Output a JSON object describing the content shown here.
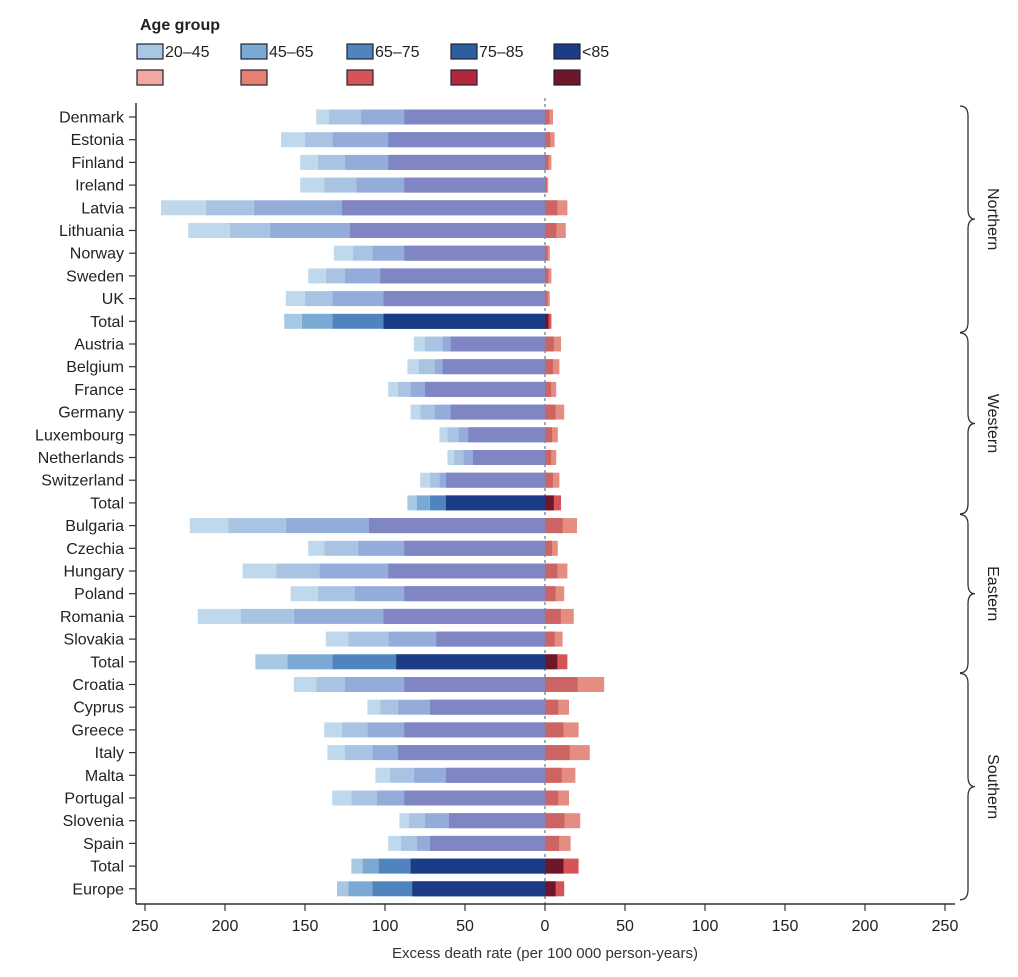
{
  "chart_data": {
    "type": "bar",
    "orientation": "horizontal",
    "stacked": true,
    "legend_title": "Age group",
    "legend_placement": "top-left",
    "xlabel": "Excess death rate (per 100 000 person-years)",
    "xlim": [
      -250,
      250
    ],
    "x_ticks": [
      -250,
      -200,
      -150,
      -100,
      -50,
      0,
      50,
      100,
      150,
      200,
      250
    ],
    "x_tick_labels": [
      "250",
      "200",
      "150",
      "100",
      "50",
      "0",
      "50",
      "100",
      "150",
      "200",
      "250"
    ],
    "reference_line": {
      "x": 0,
      "style": "dashed"
    },
    "age_groups": [
      "20–45",
      "45–65",
      "65–75",
      "75–85",
      "<85"
    ],
    "colors": {
      "blue": [
        "#a7c8e2",
        "#7aaad3",
        "#4f84bf",
        "#2c5f9e",
        "#1b3c86"
      ],
      "red": [
        "#f2aaa0",
        "#e8806f",
        "#d65457",
        "#b2283a",
        "#6f1628"
      ],
      "country_blue": [
        "#c0d8ec",
        "#a9c4e3",
        "#94acd9",
        "#8791ca",
        "#7f86c3"
      ],
      "country_red": [
        "#f6c7bd",
        "#eeaa9c",
        "#e48d80",
        "#d87671",
        "#cc6464"
      ]
    },
    "regions": [
      {
        "name": "Northern",
        "rows": [
          "Denmark",
          "Estonia",
          "Finland",
          "Ireland",
          "Latvia",
          "Lithuania",
          "Norway",
          "Sweden",
          "UK",
          "Total"
        ]
      },
      {
        "name": "Western",
        "rows": [
          "Austria",
          "Belgium",
          "France",
          "Germany",
          "Luxembourg",
          "Netherlands",
          "Switzerland",
          "Total"
        ]
      },
      {
        "name": "Eastern",
        "rows": [
          "Bulgaria",
          "Czechia",
          "Hungary",
          "Poland",
          "Romania",
          "Slovakia",
          "Total"
        ]
      },
      {
        "name": "Southern",
        "rows": [
          "Croatia",
          "Cyprus",
          "Greece",
          "Italy",
          "Malta",
          "Portugal",
          "Slovenia",
          "Spain",
          "Total",
          "Europe"
        ]
      }
    ],
    "rows": [
      {
        "label": "Denmark",
        "total": false,
        "neg": [
          -143,
          -135,
          -115,
          -88
        ],
        "pos": 5
      },
      {
        "label": "Estonia",
        "total": false,
        "neg": [
          -165,
          -150,
          -133,
          -98
        ],
        "pos": 6
      },
      {
        "label": "Finland",
        "total": false,
        "neg": [
          -153,
          -142,
          -125,
          -98
        ],
        "pos": 4
      },
      {
        "label": "Ireland",
        "total": false,
        "neg": [
          -153,
          -138,
          -118,
          -88
        ],
        "pos": 2
      },
      {
        "label": "Latvia",
        "total": false,
        "neg": [
          -240,
          -212,
          -182,
          -127
        ],
        "pos": 14
      },
      {
        "label": "Lithuania",
        "total": false,
        "neg": [
          -223,
          -197,
          -172,
          -122
        ],
        "pos": 13
      },
      {
        "label": "Norway",
        "total": false,
        "neg": [
          -132,
          -120,
          -108,
          -88
        ],
        "pos": 3
      },
      {
        "label": "Sweden",
        "total": false,
        "neg": [
          -148,
          -137,
          -125,
          -103
        ],
        "pos": 4
      },
      {
        "label": "UK",
        "total": false,
        "neg": [
          -162,
          -150,
          -133,
          -101
        ],
        "pos": 3
      },
      {
        "label": "Total",
        "total": true,
        "neg": [
          -163,
          -152,
          -133,
          -101
        ],
        "pos": 4
      },
      {
        "label": "Austria",
        "total": false,
        "neg": [
          -82,
          -75,
          -64,
          -59
        ],
        "pos": 10
      },
      {
        "label": "Belgium",
        "total": false,
        "neg": [
          -86,
          -79,
          -69,
          -64
        ],
        "pos": 9
      },
      {
        "label": "France",
        "total": false,
        "neg": [
          -98,
          -92,
          -84,
          -75
        ],
        "pos": 7
      },
      {
        "label": "Germany",
        "total": false,
        "neg": [
          -84,
          -78,
          -69,
          -59
        ],
        "pos": 12
      },
      {
        "label": "Luxembourg",
        "total": false,
        "neg": [
          -66,
          -61,
          -54,
          -48
        ],
        "pos": 8
      },
      {
        "label": "Netherlands",
        "total": false,
        "neg": [
          -61,
          -57,
          -51,
          -45
        ],
        "pos": 7
      },
      {
        "label": "Switzerland",
        "total": false,
        "neg": [
          -78,
          -72,
          -66,
          -62
        ],
        "pos": 9
      },
      {
        "label": "Total",
        "total": true,
        "neg": [
          -86,
          -80,
          -72,
          -62
        ],
        "pos": 10
      },
      {
        "label": "Bulgaria",
        "total": false,
        "neg": [
          -222,
          -198,
          -162,
          -110
        ],
        "pos": 20
      },
      {
        "label": "Czechia",
        "total": false,
        "neg": [
          -148,
          -138,
          -117,
          -88
        ],
        "pos": 8
      },
      {
        "label": "Hungary",
        "total": false,
        "neg": [
          -189,
          -168,
          -141,
          -98
        ],
        "pos": 14
      },
      {
        "label": "Poland",
        "total": false,
        "neg": [
          -159,
          -142,
          -119,
          -88
        ],
        "pos": 12
      },
      {
        "label": "Romania",
        "total": false,
        "neg": [
          -217,
          -190,
          -157,
          -101
        ],
        "pos": 18
      },
      {
        "label": "Slovakia",
        "total": false,
        "neg": [
          -137,
          -123,
          -98,
          -68
        ],
        "pos": 11
      },
      {
        "label": "Total",
        "total": true,
        "neg": [
          -181,
          -161,
          -133,
          -93
        ],
        "pos": 14
      },
      {
        "label": "Croatia",
        "total": false,
        "neg": [
          -157,
          -143,
          -125,
          -88
        ],
        "pos": 37
      },
      {
        "label": "Cyprus",
        "total": false,
        "neg": [
          -111,
          -103,
          -92,
          -72
        ],
        "pos": 15
      },
      {
        "label": "Greece",
        "total": false,
        "neg": [
          -138,
          -127,
          -111,
          -88
        ],
        "pos": 21
      },
      {
        "label": "Italy",
        "total": false,
        "neg": [
          -136,
          -125,
          -108,
          -92
        ],
        "pos": 28
      },
      {
        "label": "Malta",
        "total": false,
        "neg": [
          -106,
          -97,
          -82,
          -62
        ],
        "pos": 19
      },
      {
        "label": "Portugal",
        "total": false,
        "neg": [
          -133,
          -121,
          -105,
          -88
        ],
        "pos": 15
      },
      {
        "label": "Slovenia",
        "total": false,
        "neg": [
          -91,
          -85,
          -75,
          -60
        ],
        "pos": 22
      },
      {
        "label": "Spain",
        "total": false,
        "neg": [
          -98,
          -90,
          -80,
          -72
        ],
        "pos": 16
      },
      {
        "label": "Total",
        "total": true,
        "neg": [
          -121,
          -114,
          -104,
          -84
        ],
        "pos": 21
      },
      {
        "label": "Europe",
        "total": true,
        "neg": [
          -130,
          -123,
          -108,
          -83
        ],
        "pos": 12
      }
    ]
  }
}
